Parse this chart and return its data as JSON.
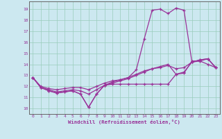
{
  "xlabel": "Windchill (Refroidissement éolien,°C)",
  "bg_color": "#cce8f0",
  "line_color": "#993399",
  "grid_color": "#99ccbb",
  "axis_color": "#666666",
  "xlim": [
    -0.5,
    23.5
  ],
  "ylim": [
    9.5,
    19.7
  ],
  "xticks": [
    0,
    1,
    2,
    3,
    4,
    5,
    6,
    7,
    8,
    9,
    10,
    11,
    12,
    13,
    14,
    15,
    16,
    17,
    18,
    19,
    20,
    21,
    22,
    23
  ],
  "yticks": [
    10,
    11,
    12,
    13,
    14,
    15,
    16,
    17,
    18,
    19
  ],
  "curves": [
    [
      12.8,
      11.9,
      11.6,
      11.4,
      11.5,
      11.6,
      11.3,
      10.1,
      11.3,
      12.1,
      12.2,
      12.2,
      12.2,
      12.2,
      12.2,
      12.2,
      12.2,
      12.2,
      13.1,
      13.2,
      14.3,
      14.3,
      14.0,
      13.7
    ],
    [
      12.8,
      11.9,
      11.6,
      11.4,
      11.5,
      11.6,
      11.3,
      10.1,
      11.3,
      12.1,
      12.4,
      12.6,
      12.8,
      13.5,
      16.3,
      18.9,
      19.0,
      18.6,
      19.1,
      18.9,
      14.2,
      14.3,
      14.5,
      13.7
    ],
    [
      12.8,
      11.9,
      11.7,
      11.5,
      11.6,
      11.7,
      11.6,
      11.3,
      11.7,
      12.1,
      12.3,
      12.5,
      12.7,
      13.0,
      13.3,
      13.6,
      13.8,
      14.0,
      13.1,
      13.3,
      14.2,
      14.4,
      14.5,
      13.7
    ],
    [
      12.8,
      12.0,
      11.8,
      11.7,
      11.8,
      11.9,
      11.9,
      11.7,
      12.0,
      12.3,
      12.5,
      12.6,
      12.8,
      13.1,
      13.4,
      13.6,
      13.7,
      13.9,
      13.6,
      13.7,
      14.2,
      14.4,
      14.5,
      13.7
    ]
  ]
}
